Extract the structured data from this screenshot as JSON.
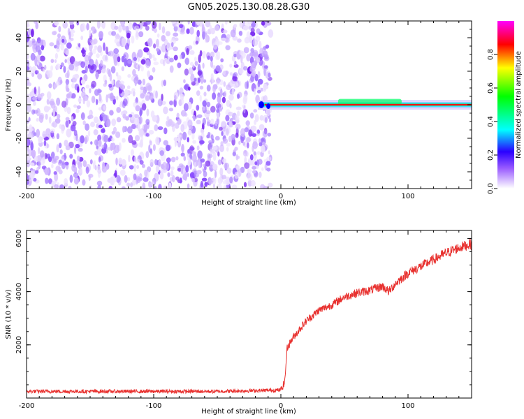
{
  "title": "GN05.2025.130.08.28.G30",
  "chart_data": [
    {
      "type": "heatmap",
      "xlabel": "Height of straight line (km)",
      "ylabel": "Frequency (Hz)",
      "xlim": [
        -200,
        150
      ],
      "ylim": [
        -50,
        50
      ],
      "x_ticks": [
        -200,
        -100,
        0,
        100
      ],
      "y_ticks": [
        -40,
        -20,
        0,
        20,
        40
      ],
      "noise_region_x": [
        -200,
        -8
      ],
      "signal_start_x": -17,
      "signal_frequency": 0,
      "signal_bump": {
        "x_range": [
          45,
          95
        ],
        "frequency": 1
      },
      "colorbar": {
        "label": "Normalized spectral amplitude",
        "range": [
          0,
          1
        ],
        "ticks": [
          0.0,
          0.2,
          0.4,
          0.6,
          0.8
        ],
        "tick_labels": [
          "0.0",
          "0.2",
          "0.4",
          "0.6",
          "0.8"
        ],
        "colors": [
          "#ffffff",
          "#8000ff",
          "#0000ff",
          "#00ffff",
          "#00ff00",
          "#ffff00",
          "#ff0000",
          "#ff00ff"
        ]
      }
    },
    {
      "type": "line",
      "xlabel": "Height of straight line (km)",
      "ylabel": "SNR (10 * v/v)",
      "xlim": [
        -200,
        150
      ],
      "ylim": [
        0,
        6300
      ],
      "x_ticks": [
        -200,
        -100,
        0,
        100
      ],
      "y_ticks": [
        2000,
        4000,
        6000
      ],
      "color": "#e8312f",
      "series": [
        {
          "x": [
            -200,
            -150,
            -100,
            -50,
            0,
            3,
            5,
            10,
            20,
            30,
            40,
            50,
            60,
            70,
            80,
            85,
            90,
            100,
            110,
            120,
            130,
            140,
            150
          ],
          "y": [
            250,
            250,
            250,
            250,
            300,
            600,
            1900,
            2300,
            2900,
            3300,
            3500,
            3800,
            3950,
            4050,
            4200,
            4000,
            4300,
            4700,
            4950,
            5200,
            5450,
            5650,
            5800
          ]
        }
      ]
    }
  ]
}
